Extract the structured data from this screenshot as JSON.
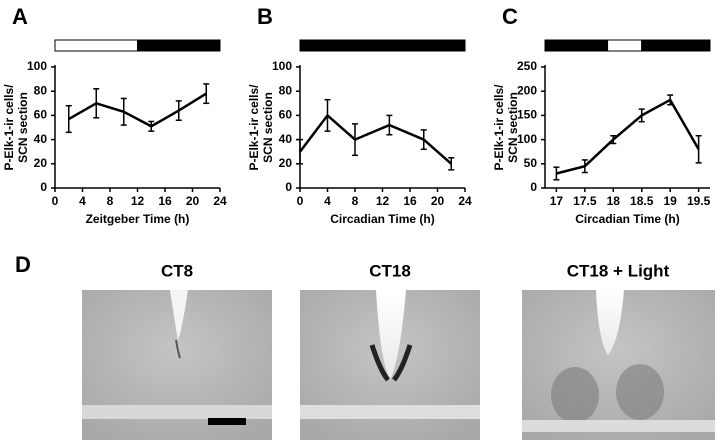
{
  "chart_data": [
    {
      "type": "line",
      "panel_label": "A",
      "x_label": "Zeitgeber Time (h)",
      "y_label": [
        "P-Elk-1-ir cells/",
        "SCN section"
      ],
      "x": [
        2,
        6,
        10,
        14,
        18,
        22
      ],
      "values": [
        57,
        70,
        63,
        51,
        64,
        78
      ],
      "errors": [
        11,
        12,
        11,
        4,
        8,
        8
      ],
      "xlim": [
        0,
        24
      ],
      "xticks": [
        0,
        4,
        8,
        12,
        16,
        20,
        24
      ],
      "ylim": [
        0,
        100
      ],
      "yticks": [
        0,
        20,
        40,
        60,
        80,
        100
      ],
      "color": "#000000",
      "light_schedule": [
        {
          "start": 0,
          "end": 12,
          "light": true
        },
        {
          "start": 12,
          "end": 24,
          "light": false
        }
      ]
    },
    {
      "type": "line",
      "panel_label": "B",
      "x_label": "Circadian Time (h)",
      "y_label": [
        "P-Elk-1-ir cells/",
        "SCN section"
      ],
      "x": [
        0,
        4,
        8,
        13,
        18,
        22
      ],
      "values": [
        30,
        60,
        40,
        52,
        40,
        20
      ],
      "errors": [
        10,
        13,
        13,
        8,
        8,
        5
      ],
      "xlim": [
        0,
        24
      ],
      "xticks": [
        0,
        4,
        8,
        12,
        16,
        20,
        24
      ],
      "ylim": [
        0,
        100
      ],
      "yticks": [
        0,
        20,
        40,
        60,
        80,
        100
      ],
      "color": "#000000",
      "light_schedule": [
        {
          "start": 0,
          "end": 24,
          "light": false
        }
      ]
    },
    {
      "type": "line",
      "panel_label": "C",
      "x_label": "Circadian Time (h)",
      "y_label": [
        "P-Elk-1-ir cells/",
        "SCN section"
      ],
      "x": [
        17,
        17.5,
        18,
        18.5,
        19,
        19.5
      ],
      "values": [
        30,
        45,
        100,
        150,
        182,
        80
      ],
      "errors": [
        13,
        13,
        8,
        13,
        10,
        28
      ],
      "xlim": [
        16.8,
        19.7
      ],
      "xticks": [
        17,
        17.5,
        18,
        18.5,
        19,
        19.5
      ],
      "ylim": [
        0,
        250
      ],
      "yticks": [
        0,
        50,
        100,
        150,
        200,
        250
      ],
      "color": "#000000",
      "light_schedule": [
        {
          "start": 16.8,
          "end": 17.9,
          "light": false
        },
        {
          "start": 17.9,
          "end": 18.5,
          "light": true
        },
        {
          "start": 18.5,
          "end": 19.7,
          "light": false
        }
      ]
    }
  ],
  "panel_d": {
    "label": "D",
    "images": [
      "CT8",
      "CT18",
      "CT18 + Light"
    ]
  }
}
